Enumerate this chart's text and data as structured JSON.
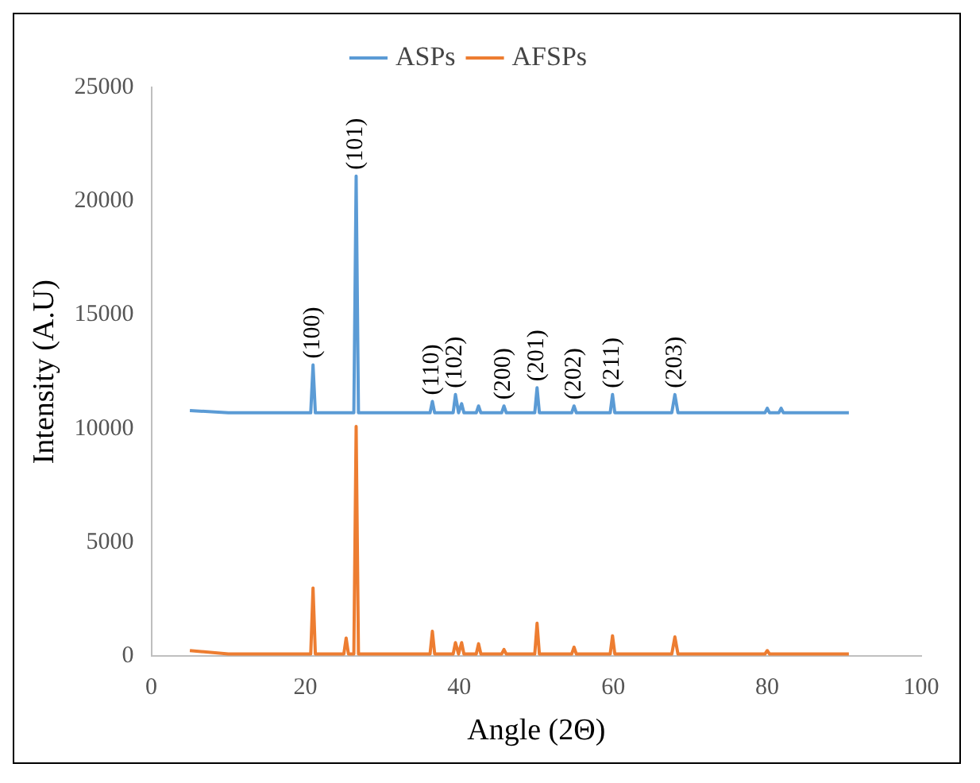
{
  "chart_data": {
    "type": "line",
    "xlabel": "Angle (2Θ)",
    "ylabel": "Intensity (A.U)",
    "xlim": [
      0,
      100
    ],
    "xticks": [
      0,
      20,
      40,
      60,
      80,
      100
    ],
    "ylim": [
      0,
      25000
    ],
    "yticks": [
      0,
      5000,
      10000,
      15000,
      20000,
      25000
    ],
    "grid": false,
    "legend": "top",
    "marker": "none",
    "series": [
      {
        "name": "ASPs",
        "color": "#5b9bd5",
        "x": [
          5,
          10,
          15,
          20.7,
          21,
          21.3,
          26.3,
          26.6,
          26.9,
          36.2,
          36.5,
          36.8,
          39.2,
          39.5,
          39.9,
          40.3,
          40.6,
          42.2,
          42.5,
          42.8,
          45.5,
          45.8,
          46.1,
          49.8,
          50.1,
          50.4,
          54.6,
          54.9,
          55.2,
          59.6,
          59.9,
          60.2,
          67.6,
          68,
          68.4,
          75,
          79.7,
          80,
          80.3,
          81.5,
          81.8,
          82.1,
          90.6
        ],
        "values": [
          10800,
          10700,
          10700,
          10700,
          12800,
          10700,
          10700,
          21100,
          10700,
          10700,
          11200,
          10700,
          10700,
          11500,
          10700,
          11100,
          10700,
          10700,
          11000,
          10700,
          10700,
          11000,
          10700,
          10700,
          11800,
          10700,
          10700,
          11000,
          10700,
          10700,
          11500,
          10700,
          10700,
          11500,
          10700,
          10700,
          10700,
          10900,
          10700,
          10700,
          10900,
          10700,
          10700
        ]
      },
      {
        "name": "AFSPs",
        "color": "#ed7d31",
        "x": [
          5,
          10,
          15,
          20.7,
          21,
          21.3,
          25,
          25.3,
          25.6,
          26.3,
          26.6,
          26.9,
          36.2,
          36.5,
          36.8,
          39.2,
          39.5,
          39.9,
          40.3,
          40.6,
          42.2,
          42.5,
          42.8,
          45.5,
          45.8,
          46.1,
          49.8,
          50.1,
          50.4,
          54.6,
          54.9,
          55.2,
          59.6,
          59.9,
          60.2,
          67.6,
          68,
          68.4,
          75,
          79.7,
          80,
          80.3,
          90.6
        ],
        "values": [
          250,
          100,
          100,
          100,
          3000,
          100,
          100,
          800,
          100,
          100,
          10100,
          100,
          100,
          1100,
          100,
          100,
          600,
          100,
          600,
          100,
          100,
          550,
          100,
          100,
          300,
          100,
          100,
          1450,
          100,
          100,
          400,
          100,
          100,
          900,
          100,
          100,
          850,
          100,
          100,
          100,
          250,
          100,
          100
        ]
      }
    ],
    "annotations": [
      {
        "text": "(100)",
        "x": 21,
        "y": 12800
      },
      {
        "text": "(101)",
        "x": 26.6,
        "y": 21100
      },
      {
        "text": "(110)",
        "x": 36.5,
        "y": 11200
      },
      {
        "text": "(102)",
        "x": 39.5,
        "y": 11500
      },
      {
        "text": "(200)",
        "x": 45.8,
        "y": 11000
      },
      {
        "text": "(201)",
        "x": 50.1,
        "y": 11800
      },
      {
        "text": "(202)",
        "x": 54.9,
        "y": 11000
      },
      {
        "text": "(211)",
        "x": 59.9,
        "y": 11500
      },
      {
        "text": "(203)",
        "x": 68,
        "y": 11500
      }
    ]
  }
}
